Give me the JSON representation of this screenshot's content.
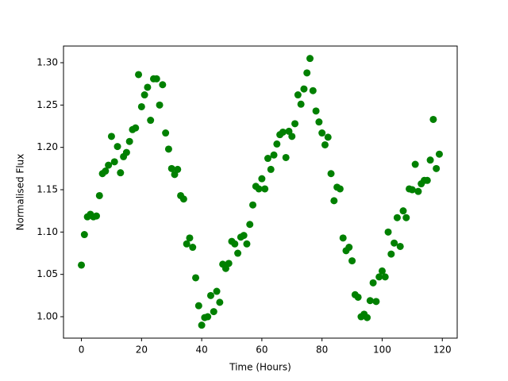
{
  "chart_data": {
    "type": "scatter",
    "x_label": "Time (Hours)",
    "y_label": "Normalised Flux",
    "color": "#008000",
    "x": [
      0,
      1,
      2,
      3,
      4,
      5,
      6,
      7,
      8,
      9,
      10,
      11,
      12,
      13,
      14,
      15,
      16,
      17,
      18,
      19,
      20,
      21,
      22,
      23,
      24,
      25,
      26,
      27,
      28,
      29,
      30,
      31,
      32,
      33,
      34,
      35,
      36,
      37,
      38,
      39,
      40,
      41,
      42,
      43,
      44,
      45,
      46,
      47,
      48,
      49,
      50,
      51,
      52,
      53,
      54,
      55,
      56,
      57,
      58,
      59,
      60,
      61,
      62,
      63,
      64,
      65,
      66,
      67,
      68,
      69,
      70,
      71,
      72,
      73,
      74,
      75,
      76,
      77,
      78,
      79,
      80,
      81,
      82,
      83,
      84,
      85,
      86,
      87,
      88,
      89,
      90,
      91,
      92,
      93,
      94,
      95,
      96,
      97,
      98,
      99,
      100,
      101,
      102,
      103,
      104,
      105,
      106,
      107,
      108,
      109,
      110,
      111,
      112,
      113,
      114,
      115,
      116,
      117,
      118,
      119
    ],
    "values": [
      1.061,
      1.097,
      1.118,
      1.121,
      1.118,
      1.119,
      1.143,
      1.169,
      1.172,
      1.179,
      1.213,
      1.183,
      1.201,
      1.17,
      1.189,
      1.194,
      1.207,
      1.221,
      1.223,
      1.286,
      1.248,
      1.262,
      1.271,
      1.232,
      1.281,
      1.281,
      1.25,
      1.274,
      1.217,
      1.198,
      1.175,
      1.168,
      1.174,
      1.143,
      1.139,
      1.086,
      1.093,
      1.082,
      1.046,
      1.013,
      0.99,
      0.999,
      1.0,
      1.025,
      1.006,
      1.03,
      1.017,
      1.062,
      1.057,
      1.063,
      1.089,
      1.086,
      1.075,
      1.094,
      1.096,
      1.086,
      1.109,
      1.132,
      1.154,
      1.151,
      1.163,
      1.151,
      1.187,
      1.174,
      1.191,
      1.204,
      1.215,
      1.218,
      1.188,
      1.219,
      1.213,
      1.228,
      1.262,
      1.251,
      1.269,
      1.288,
      1.305,
      1.267,
      1.243,
      1.23,
      1.217,
      1.203,
      1.212,
      1.169,
      1.137,
      1.153,
      1.151,
      1.093,
      1.078,
      1.082,
      1.066,
      1.026,
      1.023,
      1.0,
      1.003,
      0.999,
      1.019,
      1.04,
      1.018,
      1.047,
      1.054,
      1.047,
      1.1,
      1.074,
      1.087,
      1.117,
      1.083,
      1.125,
      1.117,
      1.151,
      1.15,
      1.18,
      1.148,
      1.157,
      1.161,
      1.161,
      1.185,
      1.233,
      1.175,
      1.192
    ],
    "xlim": [
      -5.95,
      124.95
    ],
    "ylim": [
      0.9747,
      1.3197
    ],
    "xticks": [
      0,
      20,
      40,
      60,
      80,
      100,
      120
    ],
    "yticks": [
      {
        "value": 1.0,
        "label": "1.00"
      },
      {
        "value": 1.05,
        "label": "1.05"
      },
      {
        "value": 1.1,
        "label": "1.10"
      },
      {
        "value": 1.15,
        "label": "1.15"
      },
      {
        "value": 1.2,
        "label": "1.20"
      },
      {
        "value": 1.25,
        "label": "1.25"
      },
      {
        "value": 1.3,
        "label": "1.30"
      }
    ],
    "grid": false
  }
}
